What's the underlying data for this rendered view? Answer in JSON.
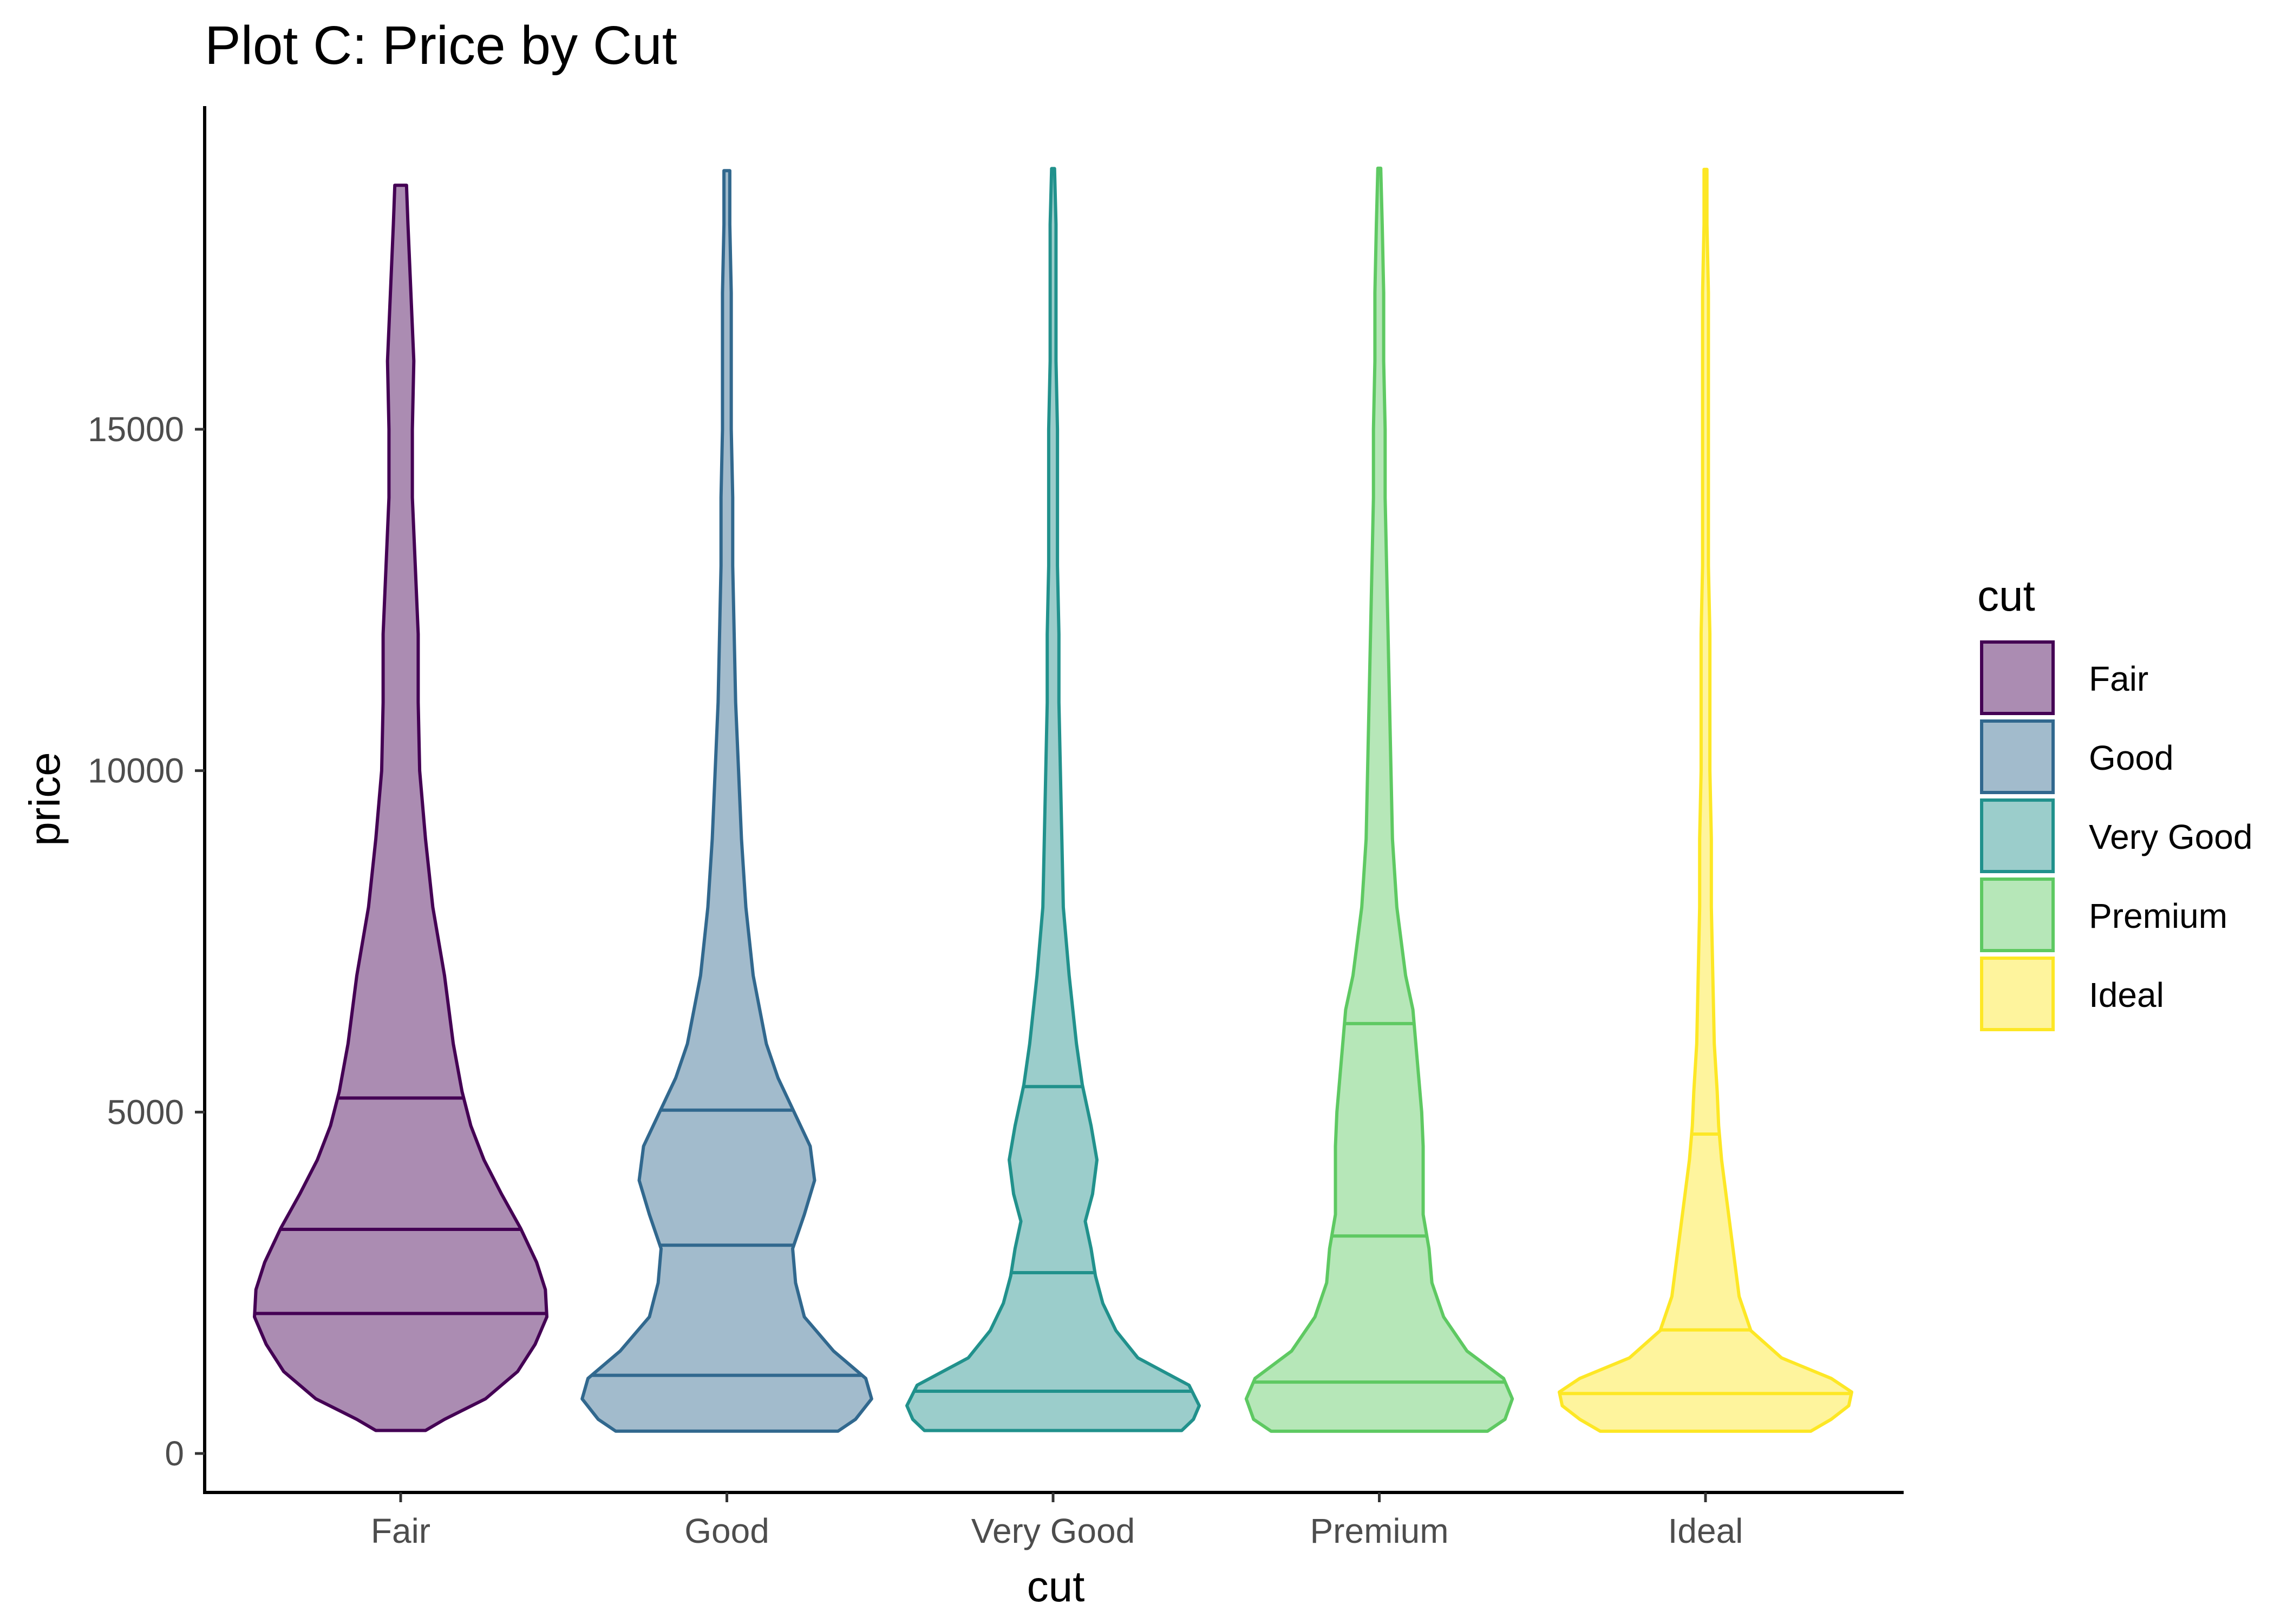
{
  "chart_data": {
    "type": "violin",
    "title": "Plot C: Price by Cut",
    "xlabel": "cut",
    "ylabel": "price",
    "ylim": [
      -600,
      19700
    ],
    "yticks": [
      0,
      5000,
      10000,
      15000
    ],
    "ytick_labels": [
      "0",
      "5000",
      "10000",
      "15000"
    ],
    "categories": [
      "Fair",
      "Good",
      "Very Good",
      "Premium",
      "Ideal"
    ],
    "legend": {
      "title": "cut",
      "position": "right"
    },
    "series": [
      {
        "name": "Fair",
        "color": "#440154",
        "min": 337,
        "max": 18574,
        "quantiles": [
          2050,
          3282,
          5206
        ],
        "density": [
          [
            337,
            0.17
          ],
          [
            500,
            0.3
          ],
          [
            800,
            0.58
          ],
          [
            1200,
            0.8
          ],
          [
            1600,
            0.92
          ],
          [
            2000,
            1.0
          ],
          [
            2400,
            0.99
          ],
          [
            2800,
            0.93
          ],
          [
            3300,
            0.82
          ],
          [
            3800,
            0.69
          ],
          [
            4300,
            0.57
          ],
          [
            4800,
            0.48
          ],
          [
            5300,
            0.42
          ],
          [
            6000,
            0.36
          ],
          [
            7000,
            0.3
          ],
          [
            8000,
            0.22
          ],
          [
            9000,
            0.17
          ],
          [
            10000,
            0.13
          ],
          [
            11000,
            0.12
          ],
          [
            12000,
            0.12
          ],
          [
            13000,
            0.1
          ],
          [
            14000,
            0.08
          ],
          [
            15000,
            0.08
          ],
          [
            16000,
            0.09
          ],
          [
            17000,
            0.07
          ],
          [
            18000,
            0.05
          ],
          [
            18574,
            0.04
          ]
        ]
      },
      {
        "name": "Good",
        "color": "#31688e",
        "min": 327,
        "max": 18788,
        "quantiles": [
          1145,
          3050,
          5028
        ],
        "density": [
          [
            327,
            0.76
          ],
          [
            500,
            0.88
          ],
          [
            800,
            0.99
          ],
          [
            1100,
            0.95
          ],
          [
            1500,
            0.73
          ],
          [
            2000,
            0.53
          ],
          [
            2500,
            0.47
          ],
          [
            3000,
            0.45
          ],
          [
            3500,
            0.53
          ],
          [
            4000,
            0.6
          ],
          [
            4500,
            0.57
          ],
          [
            5000,
            0.46
          ],
          [
            5500,
            0.35
          ],
          [
            6000,
            0.27
          ],
          [
            7000,
            0.18
          ],
          [
            8000,
            0.13
          ],
          [
            9000,
            0.1
          ],
          [
            10000,
            0.08
          ],
          [
            11000,
            0.06
          ],
          [
            12000,
            0.05
          ],
          [
            13000,
            0.04
          ],
          [
            14000,
            0.04
          ],
          [
            15000,
            0.03
          ],
          [
            16000,
            0.03
          ],
          [
            17000,
            0.03
          ],
          [
            18000,
            0.02
          ],
          [
            18788,
            0.02
          ]
        ]
      },
      {
        "name": "Very Good",
        "color": "#21918c",
        "min": 336,
        "max": 18818,
        "quantiles": [
          912,
          2648,
          5373
        ],
        "density": [
          [
            336,
            0.88
          ],
          [
            500,
            0.96
          ],
          [
            700,
            1.0
          ],
          [
            1000,
            0.93
          ],
          [
            1400,
            0.58
          ],
          [
            1800,
            0.43
          ],
          [
            2200,
            0.34
          ],
          [
            2600,
            0.29
          ],
          [
            3000,
            0.26
          ],
          [
            3400,
            0.22
          ],
          [
            3800,
            0.27
          ],
          [
            4300,
            0.3
          ],
          [
            4800,
            0.26
          ],
          [
            5400,
            0.2
          ],
          [
            6000,
            0.16
          ],
          [
            7000,
            0.11
          ],
          [
            8000,
            0.07
          ],
          [
            9000,
            0.06
          ],
          [
            10000,
            0.05
          ],
          [
            11000,
            0.04
          ],
          [
            12000,
            0.04
          ],
          [
            13000,
            0.03
          ],
          [
            14000,
            0.03
          ],
          [
            15000,
            0.03
          ],
          [
            16000,
            0.02
          ],
          [
            17000,
            0.02
          ],
          [
            18000,
            0.02
          ],
          [
            18818,
            0.01
          ]
        ]
      },
      {
        "name": "Premium",
        "color": "#5ec962",
        "min": 326,
        "max": 18823,
        "quantiles": [
          1046,
          3185,
          6296
        ],
        "density": [
          [
            326,
            0.74
          ],
          [
            500,
            0.86
          ],
          [
            800,
            0.91
          ],
          [
            1100,
            0.85
          ],
          [
            1500,
            0.6
          ],
          [
            2000,
            0.44
          ],
          [
            2500,
            0.36
          ],
          [
            3000,
            0.34
          ],
          [
            3500,
            0.3
          ],
          [
            4000,
            0.3
          ],
          [
            4500,
            0.3
          ],
          [
            5000,
            0.29
          ],
          [
            5500,
            0.27
          ],
          [
            6000,
            0.25
          ],
          [
            6500,
            0.23
          ],
          [
            7000,
            0.18
          ],
          [
            8000,
            0.12
          ],
          [
            9000,
            0.09
          ],
          [
            10000,
            0.08
          ],
          [
            11000,
            0.07
          ],
          [
            12000,
            0.06
          ],
          [
            13000,
            0.05
          ],
          [
            14000,
            0.04
          ],
          [
            15000,
            0.04
          ],
          [
            16000,
            0.03
          ],
          [
            17000,
            0.03
          ],
          [
            18000,
            0.02
          ],
          [
            18823,
            0.01
          ]
        ]
      },
      {
        "name": "Ideal",
        "color": "#fde725",
        "min": 326,
        "max": 18806,
        "quantiles": [
          878,
          1810,
          4678
        ],
        "density": [
          [
            326,
            0.72
          ],
          [
            500,
            0.86
          ],
          [
            700,
            0.98
          ],
          [
            900,
            1.0
          ],
          [
            1100,
            0.86
          ],
          [
            1400,
            0.52
          ],
          [
            1800,
            0.31
          ],
          [
            2300,
            0.23
          ],
          [
            2800,
            0.2
          ],
          [
            3300,
            0.17
          ],
          [
            3800,
            0.14
          ],
          [
            4300,
            0.11
          ],
          [
            4800,
            0.09
          ],
          [
            5300,
            0.08
          ],
          [
            6000,
            0.06
          ],
          [
            7000,
            0.05
          ],
          [
            8000,
            0.04
          ],
          [
            9000,
            0.04
          ],
          [
            10000,
            0.03
          ],
          [
            11000,
            0.03
          ],
          [
            12000,
            0.03
          ],
          [
            13000,
            0.02
          ],
          [
            14000,
            0.02
          ],
          [
            15000,
            0.02
          ],
          [
            16000,
            0.02
          ],
          [
            17000,
            0.02
          ],
          [
            18000,
            0.01
          ],
          [
            18806,
            0.01
          ]
        ]
      }
    ]
  }
}
